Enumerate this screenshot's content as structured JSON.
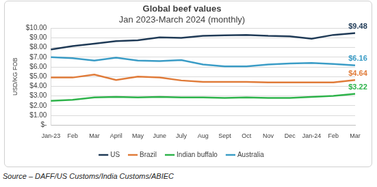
{
  "chart_data": {
    "type": "line",
    "title": "Global beef values",
    "subtitle": "Jan 2023-March 2024 (monthly)",
    "y_label": "USD/KG FOB",
    "categories": [
      "Jan-23",
      "Feb",
      "Mar",
      "April",
      "May",
      "June",
      "July",
      "Aug",
      "Sept",
      "Oct",
      "Nov",
      "Dec",
      "Jan-24",
      "Feb",
      "Mar"
    ],
    "series": [
      {
        "name": "US",
        "color": "#1f3a56",
        "values": [
          7.8,
          8.15,
          8.4,
          8.65,
          8.75,
          9.05,
          9.0,
          9.2,
          9.25,
          9.3,
          9.2,
          9.15,
          8.9,
          9.3,
          9.48
        ],
        "value_labels": [
          null,
          null,
          null,
          null,
          null,
          null,
          null,
          null,
          null,
          null,
          null,
          null,
          null,
          null,
          "$9.48"
        ]
      },
      {
        "name": "Brazil",
        "color": "#e07b39",
        "values": [
          4.9,
          4.9,
          5.2,
          4.65,
          5.0,
          4.9,
          4.6,
          4.45,
          4.45,
          4.45,
          4.4,
          4.4,
          4.4,
          4.4,
          4.64
        ],
        "value_labels": [
          null,
          null,
          null,
          null,
          null,
          null,
          null,
          null,
          null,
          null,
          null,
          null,
          null,
          null,
          "$4.64"
        ]
      },
      {
        "name": "Indian buffalo",
        "color": "#2db34a",
        "values": [
          2.5,
          2.6,
          2.85,
          2.9,
          2.85,
          2.9,
          2.85,
          2.85,
          2.8,
          2.85,
          2.8,
          2.8,
          2.9,
          3.0,
          3.22
        ],
        "value_labels": [
          null,
          null,
          null,
          null,
          null,
          null,
          null,
          null,
          null,
          null,
          null,
          null,
          null,
          null,
          "$3.22"
        ]
      },
      {
        "name": "Australia",
        "color": "#3a9cc6",
        "values": [
          7.0,
          6.9,
          6.65,
          6.95,
          6.65,
          6.6,
          6.7,
          6.25,
          6.05,
          6.05,
          6.25,
          6.35,
          6.4,
          6.3,
          6.16
        ],
        "value_labels": [
          null,
          null,
          null,
          null,
          null,
          null,
          null,
          null,
          null,
          null,
          null,
          null,
          null,
          null,
          "$6.16"
        ]
      }
    ],
    "ylim": [
      0,
      10
    ],
    "yticks": [
      {
        "value": 0,
        "label": "$-"
      },
      {
        "value": 1,
        "label": "$1.00"
      },
      {
        "value": 2,
        "label": "$2.00"
      },
      {
        "value": 3,
        "label": "$3.00"
      },
      {
        "value": 4,
        "label": "$4.00"
      },
      {
        "value": 5,
        "label": "$5.00"
      },
      {
        "value": 6,
        "label": "$6.00"
      },
      {
        "value": 7,
        "label": "$7.00"
      },
      {
        "value": 8,
        "label": "$8.00"
      },
      {
        "value": 9,
        "label": "$9.00"
      },
      {
        "value": 10,
        "label": "$10.00"
      }
    ],
    "grid": true,
    "legend": "bottom"
  },
  "source": "Source – DAFF/US Customs/India Customs/ABIEC"
}
